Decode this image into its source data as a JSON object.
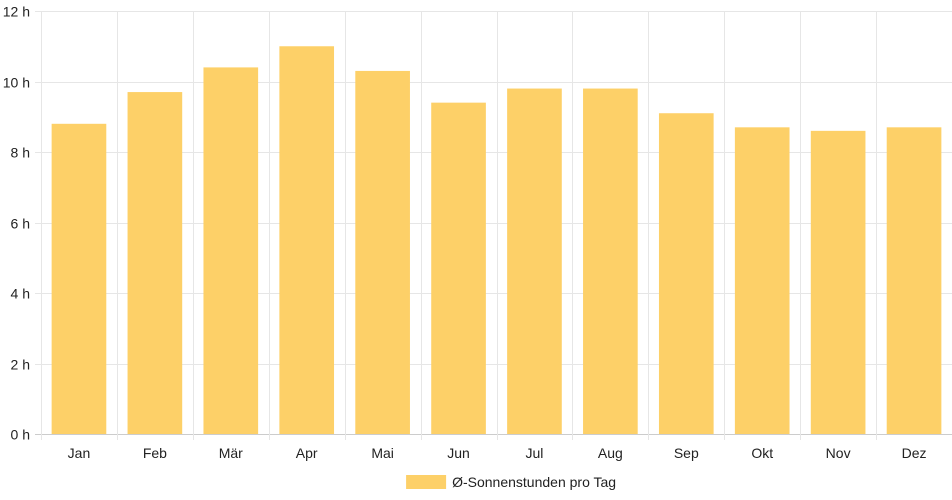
{
  "chart_data": {
    "type": "bar",
    "categories": [
      "Jan",
      "Feb",
      "Mär",
      "Apr",
      "Mai",
      "Jun",
      "Jul",
      "Aug",
      "Sep",
      "Okt",
      "Nov",
      "Dez"
    ],
    "series": [
      {
        "name": "Ø-Sonnenstunden pro Tag",
        "values": [
          8.8,
          9.7,
          10.4,
          11.0,
          10.3,
          9.4,
          9.8,
          9.8,
          9.1,
          8.7,
          8.6,
          8.7
        ],
        "color": "#fdd068"
      }
    ],
    "y_ticks": [
      "0 h",
      "2 h",
      "4 h",
      "6 h",
      "8 h",
      "10 h",
      "12 h"
    ],
    "ylim": [
      0,
      12
    ],
    "grid": true,
    "legend_position": "bottom-center"
  }
}
